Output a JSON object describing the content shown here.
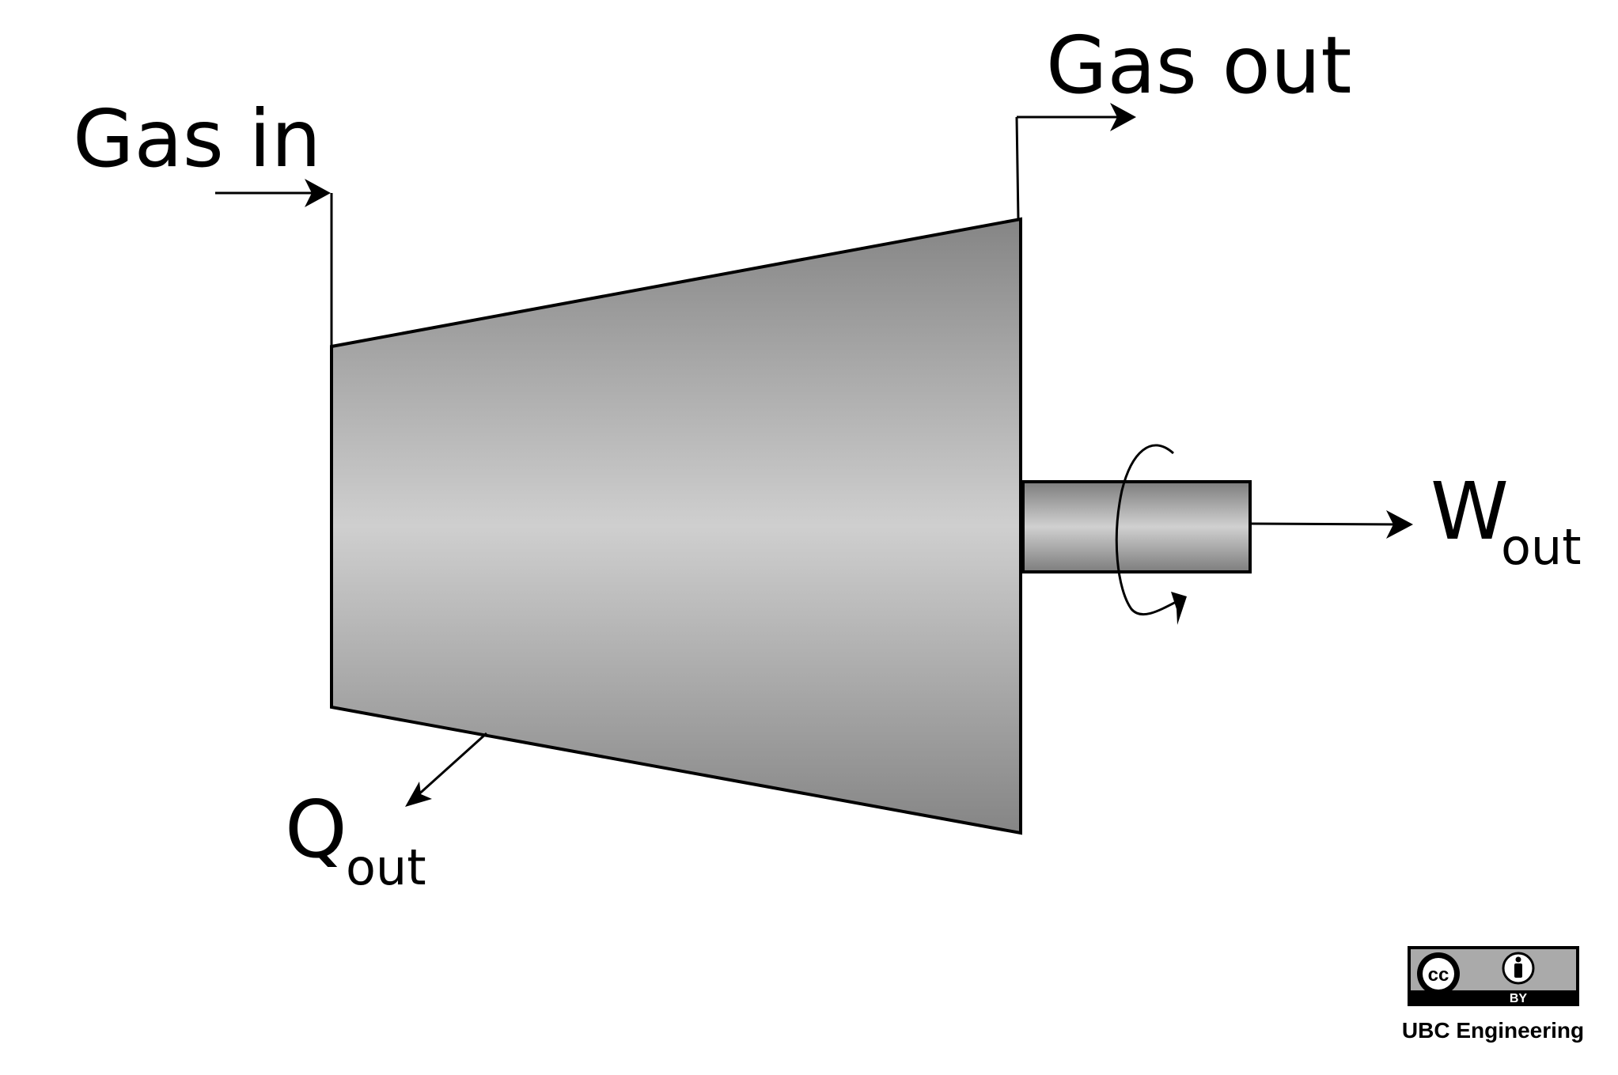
{
  "labels": {
    "gas_in": "Gas in",
    "gas_out": "Gas out",
    "work_main": "W",
    "work_sub": "out",
    "heat_main": "Q",
    "heat_sub": "out"
  },
  "license": {
    "cc": "cc",
    "by": "BY",
    "credit": "UBC Engineering"
  },
  "colors": {
    "body_dark": "#858585",
    "body_light": "#cfcfcf",
    "stroke": "#000000",
    "badge_bg": "#000000",
    "badge_panel": "#aaaaaa"
  },
  "icons": {
    "rotation": "rotation-arrow-icon",
    "cc": "creative-commons-icon",
    "by": "attribution-person-icon"
  }
}
